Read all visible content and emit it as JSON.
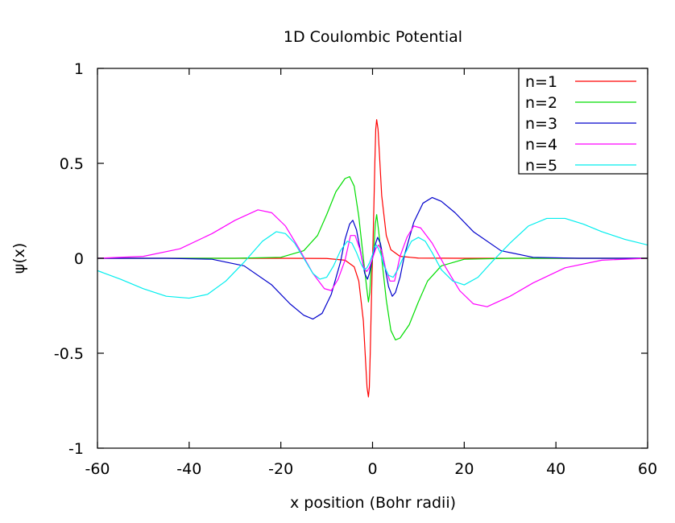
{
  "chart_data": {
    "type": "line",
    "title": "1D Coulombic Potential",
    "xlabel": "x position (Bohr radii)",
    "ylabel": "ψ(x)",
    "xlim": [
      -60,
      60
    ],
    "ylim": [
      -1,
      1
    ],
    "x_ticks": [
      "-60",
      "-40",
      "-20",
      "0",
      "20",
      "40",
      "60"
    ],
    "x_tick_values": [
      -60,
      -40,
      -20,
      0,
      20,
      40,
      60
    ],
    "y_ticks": [
      "1",
      "0.5",
      "0",
      "-0.5",
      "-1"
    ],
    "y_tick_values": [
      1,
      0.5,
      0,
      -0.5,
      -1
    ],
    "grid": false,
    "legend_position": "top-right",
    "series": [
      {
        "name": "n=1",
        "color": "#ff0000",
        "points": [
          [
            -60,
            0
          ],
          [
            -20,
            0
          ],
          [
            -10,
            -0.001
          ],
          [
            -6,
            -0.01
          ],
          [
            -4,
            -0.045
          ],
          [
            -3,
            -0.12
          ],
          [
            -2,
            -0.33
          ],
          [
            -1.5,
            -0.55
          ],
          [
            -1.2,
            -0.68
          ],
          [
            -0.9,
            -0.73
          ],
          [
            -0.7,
            -0.68
          ],
          [
            -0.5,
            -0.5
          ],
          [
            -0.3,
            -0.28
          ],
          [
            -0.1,
            -0.08
          ],
          [
            0,
            0
          ],
          [
            0.1,
            0.08
          ],
          [
            0.3,
            0.28
          ],
          [
            0.5,
            0.5
          ],
          [
            0.7,
            0.68
          ],
          [
            0.9,
            0.73
          ],
          [
            1.2,
            0.68
          ],
          [
            1.5,
            0.55
          ],
          [
            2,
            0.33
          ],
          [
            3,
            0.12
          ],
          [
            4,
            0.045
          ],
          [
            6,
            0.01
          ],
          [
            10,
            0.001
          ],
          [
            20,
            0
          ],
          [
            60,
            0
          ]
        ]
      },
      {
        "name": "n=2",
        "color": "#00dd00",
        "points": [
          [
            -60,
            0
          ],
          [
            -30,
            0
          ],
          [
            -20,
            0.005
          ],
          [
            -15,
            0.04
          ],
          [
            -12,
            0.12
          ],
          [
            -10,
            0.23
          ],
          [
            -8,
            0.35
          ],
          [
            -6,
            0.42
          ],
          [
            -5,
            0.43
          ],
          [
            -4,
            0.38
          ],
          [
            -3,
            0.22
          ],
          [
            -2,
            0.0
          ],
          [
            -1.3,
            -0.15
          ],
          [
            -0.9,
            -0.23
          ],
          [
            -0.6,
            -0.18
          ],
          [
            -0.3,
            -0.05
          ],
          [
            0,
            0
          ],
          [
            0.3,
            0.05
          ],
          [
            0.6,
            0.18
          ],
          [
            0.9,
            0.23
          ],
          [
            1.3,
            0.15
          ],
          [
            2,
            0.0
          ],
          [
            3,
            -0.22
          ],
          [
            4,
            -0.38
          ],
          [
            5,
            -0.43
          ],
          [
            6,
            -0.42
          ],
          [
            8,
            -0.35
          ],
          [
            10,
            -0.23
          ],
          [
            12,
            -0.12
          ],
          [
            15,
            -0.04
          ],
          [
            20,
            -0.005
          ],
          [
            30,
            0
          ],
          [
            60,
            0
          ]
        ]
      },
      {
        "name": "n=3",
        "color": "#0000cc",
        "points": [
          [
            -60,
            0
          ],
          [
            -45,
            0
          ],
          [
            -35,
            -0.005
          ],
          [
            -28,
            -0.04
          ],
          [
            -22,
            -0.14
          ],
          [
            -18,
            -0.24
          ],
          [
            -15,
            -0.3
          ],
          [
            -13,
            -0.32
          ],
          [
            -11,
            -0.29
          ],
          [
            -9,
            -0.19
          ],
          [
            -7,
            -0.02
          ],
          [
            -6,
            0.1
          ],
          [
            -5,
            0.18
          ],
          [
            -4.3,
            0.2
          ],
          [
            -3.5,
            0.15
          ],
          [
            -2.5,
            0.02
          ],
          [
            -1.7,
            -0.08
          ],
          [
            -1.1,
            -0.11
          ],
          [
            -0.7,
            -0.08
          ],
          [
            -0.3,
            -0.03
          ],
          [
            0,
            0
          ],
          [
            0.3,
            0.03
          ],
          [
            0.7,
            0.08
          ],
          [
            1.1,
            0.11
          ],
          [
            1.7,
            0.08
          ],
          [
            2.5,
            -0.02
          ],
          [
            3.5,
            -0.15
          ],
          [
            4.3,
            -0.2
          ],
          [
            5,
            -0.18
          ],
          [
            6,
            -0.1
          ],
          [
            7,
            0.02
          ],
          [
            9,
            0.19
          ],
          [
            11,
            0.29
          ],
          [
            13,
            0.32
          ],
          [
            15,
            0.3
          ],
          [
            18,
            0.24
          ],
          [
            22,
            0.14
          ],
          [
            28,
            0.04
          ],
          [
            35,
            0.005
          ],
          [
            45,
            0
          ],
          [
            60,
            0
          ]
        ]
      },
      {
        "name": "n=4",
        "color": "#ff00ff",
        "points": [
          [
            -60,
            0
          ],
          [
            -50,
            0.01
          ],
          [
            -42,
            0.05
          ],
          [
            -35,
            0.13
          ],
          [
            -30,
            0.2
          ],
          [
            -25,
            0.255
          ],
          [
            -22,
            0.24
          ],
          [
            -19,
            0.17
          ],
          [
            -16,
            0.05
          ],
          [
            -13,
            -0.08
          ],
          [
            -10.5,
            -0.16
          ],
          [
            -9,
            -0.17
          ],
          [
            -7.5,
            -0.11
          ],
          [
            -6,
            -0.01
          ],
          [
            -4.8,
            0.12
          ],
          [
            -3.8,
            0.12
          ],
          [
            -2.8,
            0.05
          ],
          [
            -2,
            -0.04
          ],
          [
            -1.3,
            -0.07
          ],
          [
            -0.7,
            -0.05
          ],
          [
            0,
            0
          ],
          [
            0.7,
            0.05
          ],
          [
            1.3,
            0.07
          ],
          [
            2,
            0.04
          ],
          [
            2.8,
            -0.05
          ],
          [
            3.8,
            -0.12
          ],
          [
            4.8,
            -0.12
          ],
          [
            6,
            0.01
          ],
          [
            7.5,
            0.11
          ],
          [
            9,
            0.17
          ],
          [
            10.5,
            0.16
          ],
          [
            13,
            0.08
          ],
          [
            16,
            -0.05
          ],
          [
            19,
            -0.17
          ],
          [
            22,
            -0.24
          ],
          [
            25,
            -0.255
          ],
          [
            30,
            -0.2
          ],
          [
            35,
            -0.13
          ],
          [
            42,
            -0.05
          ],
          [
            50,
            -0.01
          ],
          [
            60,
            0
          ]
        ]
      },
      {
        "name": "n=5",
        "color": "#00eeee",
        "points": [
          [
            -60,
            -0.065
          ],
          [
            -55,
            -0.11
          ],
          [
            -50,
            -0.16
          ],
          [
            -45,
            -0.2
          ],
          [
            -40,
            -0.21
          ],
          [
            -36,
            -0.19
          ],
          [
            -32,
            -0.12
          ],
          [
            -28,
            -0.02
          ],
          [
            -24,
            0.09
          ],
          [
            -21,
            0.14
          ],
          [
            -19,
            0.13
          ],
          [
            -17,
            0.08
          ],
          [
            -15,
            0.0
          ],
          [
            -13,
            -0.08
          ],
          [
            -11.5,
            -0.11
          ],
          [
            -10,
            -0.1
          ],
          [
            -8.5,
            -0.04
          ],
          [
            -7,
            0.04
          ],
          [
            -5.5,
            0.09
          ],
          [
            -4.5,
            0.08
          ],
          [
            -3.5,
            0.03
          ],
          [
            -2.5,
            -0.03
          ],
          [
            -1.8,
            -0.06
          ],
          [
            -1.2,
            -0.05
          ],
          [
            -0.6,
            -0.02
          ],
          [
            0,
            0.02
          ],
          [
            0.4,
            0.06
          ],
          [
            0.8,
            0.07
          ],
          [
            1.3,
            0.05
          ],
          [
            1.8,
            0.02
          ],
          [
            2.5,
            -0.04
          ],
          [
            3.5,
            -0.09
          ],
          [
            4.5,
            -0.1
          ],
          [
            5.5,
            -0.06
          ],
          [
            7,
            0.02
          ],
          [
            8.5,
            0.09
          ],
          [
            10,
            0.11
          ],
          [
            11.5,
            0.09
          ],
          [
            13,
            0.03
          ],
          [
            15,
            -0.06
          ],
          [
            17.5,
            -0.12
          ],
          [
            20,
            -0.14
          ],
          [
            23,
            -0.1
          ],
          [
            26,
            -0.02
          ],
          [
            30,
            0.08
          ],
          [
            34,
            0.17
          ],
          [
            38,
            0.21
          ],
          [
            42,
            0.21
          ],
          [
            46,
            0.18
          ],
          [
            50,
            0.14
          ],
          [
            55,
            0.1
          ],
          [
            60,
            0.07
          ]
        ]
      }
    ]
  }
}
